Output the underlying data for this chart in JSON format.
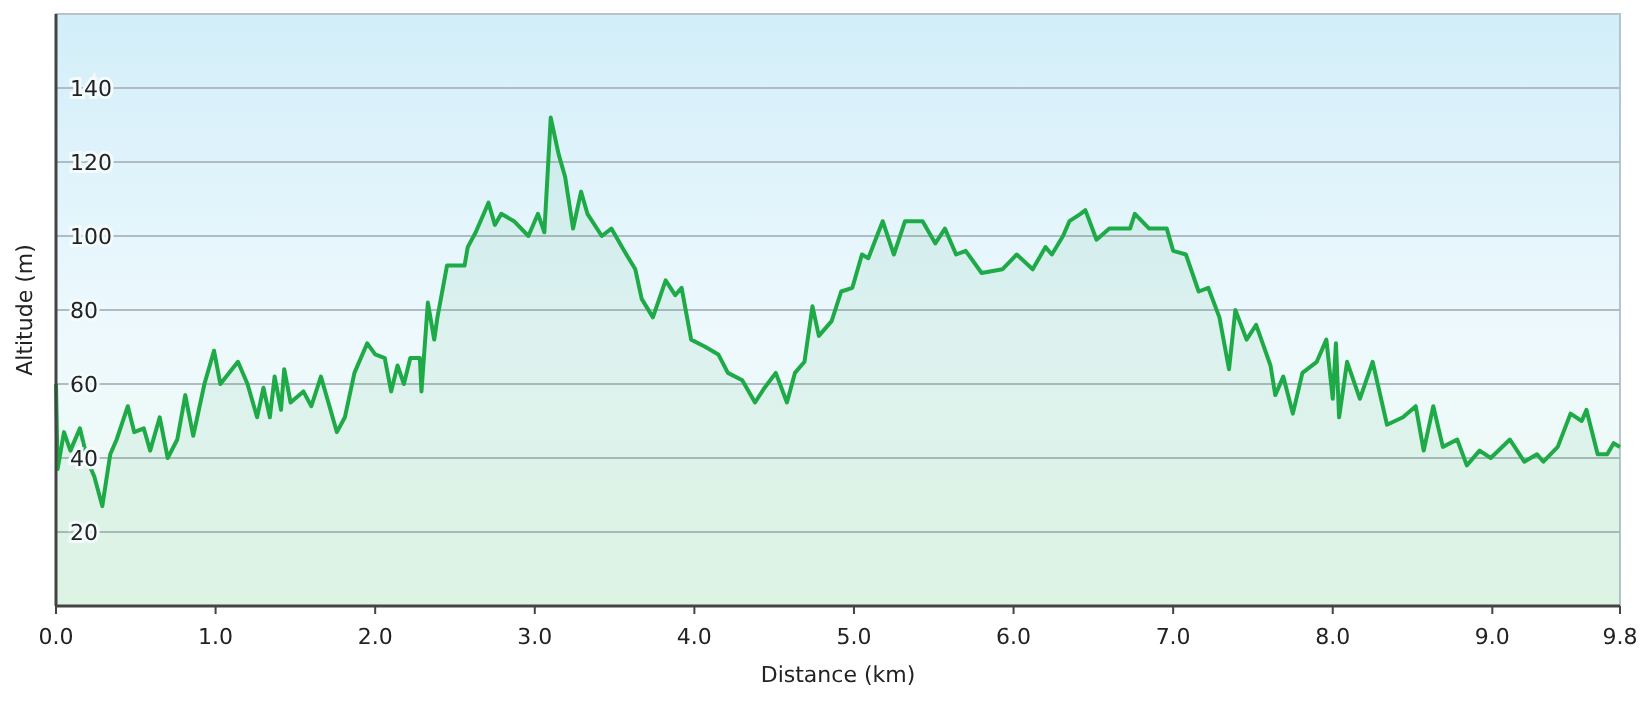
{
  "chart_data": {
    "type": "area",
    "xlabel": "Distance  (km)",
    "ylabel": "Altitude (m)",
    "xlim": [
      0,
      9.8
    ],
    "ylim": [
      0,
      160
    ],
    "xticks": [
      {
        "value": 0,
        "label": "0.0"
      },
      {
        "value": 1,
        "label": "1.0"
      },
      {
        "value": 2,
        "label": "2.0"
      },
      {
        "value": 3,
        "label": "3.0"
      },
      {
        "value": 4,
        "label": "4.0"
      },
      {
        "value": 5,
        "label": "5.0"
      },
      {
        "value": 6,
        "label": "6.0"
      },
      {
        "value": 7,
        "label": "7.0"
      },
      {
        "value": 8,
        "label": "8.0"
      },
      {
        "value": 9,
        "label": "9.0"
      },
      {
        "value": 9.8,
        "label": "9.8"
      }
    ],
    "yticks": [
      20,
      40,
      60,
      80,
      100,
      120,
      140
    ],
    "grid": "y",
    "x": [
      0,
      0.01,
      0.05,
      0.09,
      0.15,
      0.2,
      0.24,
      0.29,
      0.34,
      0.38,
      0.45,
      0.49,
      0.55,
      0.59,
      0.65,
      0.7,
      0.76,
      0.81,
      0.86,
      0.93,
      0.99,
      1.03,
      1.14,
      1.2,
      1.26,
      1.3,
      1.34,
      1.37,
      1.41,
      1.43,
      1.47,
      1.55,
      1.6,
      1.66,
      1.7,
      1.76,
      1.81,
      1.87,
      1.95,
      2.0,
      2.06,
      2.1,
      2.14,
      2.18,
      2.22,
      2.28,
      2.29,
      2.33,
      2.37,
      2.39,
      2.45,
      2.5,
      2.56,
      2.58,
      2.63,
      2.71,
      2.75,
      2.79,
      2.87,
      2.96,
      3.02,
      3.06,
      3.1,
      3.15,
      3.19,
      3.24,
      3.29,
      3.33,
      3.42,
      3.48,
      3.56,
      3.63,
      3.67,
      3.74,
      3.82,
      3.88,
      3.92,
      3.98,
      4.07,
      4.15,
      4.21,
      4.3,
      4.38,
      4.44,
      4.51,
      4.58,
      4.63,
      4.69,
      4.74,
      4.78,
      4.86,
      4.92,
      4.99,
      5.05,
      5.09,
      5.18,
      5.25,
      5.32,
      5.43,
      5.51,
      5.57,
      5.64,
      5.7,
      5.8,
      5.93,
      6.02,
      6.12,
      6.2,
      6.24,
      6.31,
      6.35,
      6.42,
      6.45,
      6.52,
      6.6,
      6.73,
      6.76,
      6.85,
      6.96,
      7.0,
      7.08,
      7.16,
      7.22,
      7.29,
      7.35,
      7.39,
      7.46,
      7.52,
      7.61,
      7.64,
      7.69,
      7.75,
      7.81,
      7.9,
      7.96,
      8.0,
      8.02,
      8.04,
      8.09,
      8.17,
      8.25,
      8.34,
      8.44,
      8.52,
      8.57,
      8.63,
      8.69,
      8.78,
      8.84,
      8.92,
      8.99,
      9.11,
      9.2,
      9.28,
      9.32,
      9.41,
      9.49,
      9.56,
      9.59,
      9.66,
      9.72,
      9.76,
      9.8
    ],
    "series": [
      {
        "color": "#1faa48",
        "values": [
          60,
          37,
          47,
          42,
          48,
          39,
          35,
          27,
          41,
          45,
          54,
          47,
          48,
          42,
          51,
          40,
          45,
          57,
          46,
          60,
          69,
          60,
          66,
          60,
          51,
          59,
          51,
          62,
          53,
          64,
          55,
          58,
          54,
          62,
          56,
          47,
          51,
          63,
          71,
          68,
          67,
          58,
          65,
          60,
          67,
          67,
          58,
          82,
          72,
          78,
          92,
          92,
          92,
          97,
          101,
          109,
          103,
          106,
          104,
          100,
          106,
          101,
          132,
          122,
          116,
          102,
          112,
          106,
          100,
          102,
          96,
          91,
          83,
          78,
          88,
          84,
          86,
          72,
          70,
          68,
          63,
          61,
          55,
          59,
          63,
          55,
          63,
          66,
          81,
          73,
          77,
          85,
          86,
          95,
          94,
          104,
          95,
          104,
          104,
          98,
          102,
          95,
          96,
          90,
          91,
          95,
          91,
          97,
          95,
          100,
          104,
          106,
          107,
          99,
          102,
          102,
          106,
          102,
          102,
          96,
          95,
          85,
          86,
          78,
          64,
          80,
          72,
          76,
          65,
          57,
          62,
          52,
          63,
          66,
          72,
          56,
          71,
          51,
          66,
          56,
          66,
          49,
          51,
          54,
          42,
          54,
          43,
          45,
          38,
          42,
          40,
          45,
          39,
          41,
          39,
          43,
          52,
          50,
          53,
          41,
          41,
          44,
          43
        ]
      }
    ]
  }
}
